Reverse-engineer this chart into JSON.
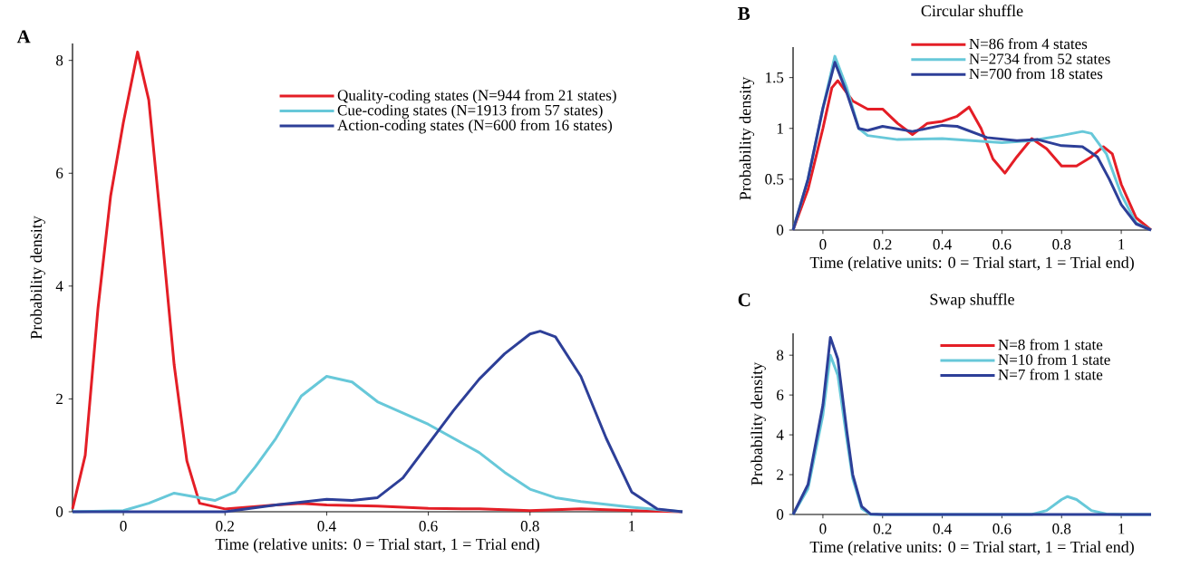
{
  "chart_data": [
    {
      "type": "line",
      "annotations": [
        "A"
      ],
      "xlabel": "Time (relative units: 0 = Trial start, 1 = Trial end)",
      "ylabel": "Probability density",
      "xlim": [
        -0.1,
        1.1
      ],
      "xticks": [
        0,
        0.2,
        0.4,
        0.6,
        0.8,
        1
      ],
      "ylim": [
        0,
        8.3
      ],
      "yticks": [
        0,
        2,
        4,
        6,
        8
      ],
      "legend": "top right",
      "series": [
        {
          "name": "Quality-coding states (N=944 from 21 states)",
          "color": "#e41e26",
          "x": [
            -0.1,
            -0.075,
            -0.05,
            -0.025,
            0,
            0.028,
            0.05,
            0.075,
            0.1,
            0.125,
            0.15,
            0.2,
            0.3,
            0.35,
            0.4,
            0.5,
            0.6,
            0.7,
            0.8,
            0.9,
            1.0,
            1.1
          ],
          "values": [
            0.05,
            1.0,
            3.6,
            5.6,
            6.9,
            8.15,
            7.3,
            5.0,
            2.6,
            0.9,
            0.15,
            0.05,
            0.12,
            0.15,
            0.12,
            0.1,
            0.06,
            0.05,
            0.02,
            0.05,
            0.02,
            0
          ]
        },
        {
          "name": "Cue-coding states (N=1913 from 57 states)",
          "color": "#67c8d9",
          "x": [
            -0.1,
            0,
            0.05,
            0.1,
            0.15,
            0.18,
            0.22,
            0.26,
            0.3,
            0.35,
            0.4,
            0.45,
            0.5,
            0.6,
            0.7,
            0.75,
            0.8,
            0.85,
            0.9,
            1.0,
            1.1
          ],
          "values": [
            0,
            0.02,
            0.15,
            0.33,
            0.25,
            0.2,
            0.35,
            0.8,
            1.3,
            2.05,
            2.4,
            2.3,
            1.95,
            1.55,
            1.05,
            0.7,
            0.4,
            0.25,
            0.18,
            0.08,
            0
          ]
        },
        {
          "name": "Action-coding states (N=600 from 16 states)",
          "color": "#2d3f98",
          "x": [
            -0.1,
            0.2,
            0.3,
            0.4,
            0.45,
            0.5,
            0.55,
            0.6,
            0.65,
            0.7,
            0.75,
            0.8,
            0.82,
            0.85,
            0.9,
            0.95,
            1.0,
            1.05,
            1.1
          ],
          "values": [
            0,
            0,
            0.12,
            0.22,
            0.2,
            0.25,
            0.6,
            1.2,
            1.8,
            2.35,
            2.8,
            3.15,
            3.2,
            3.1,
            2.4,
            1.3,
            0.35,
            0.05,
            0
          ]
        }
      ]
    },
    {
      "type": "line",
      "annotations": [
        "B"
      ],
      "title": "Circular shuffle",
      "xlabel": "Time (relative units: 0 = Trial start, 1 = Trial end)",
      "ylabel": "Probability density",
      "xlim": [
        -0.1,
        1.1
      ],
      "xticks": [
        0,
        0.2,
        0.4,
        0.6,
        0.8,
        1
      ],
      "ylim": [
        0,
        1.8
      ],
      "yticks": [
        0,
        0.5,
        1,
        1.5
      ],
      "legend": "top right",
      "series": [
        {
          "name": "N=86 from 4 states",
          "color": "#e41e26",
          "x": [
            -0.1,
            -0.05,
            0,
            0.03,
            0.05,
            0.1,
            0.15,
            0.2,
            0.25,
            0.3,
            0.35,
            0.4,
            0.45,
            0.49,
            0.53,
            0.57,
            0.61,
            0.65,
            0.7,
            0.75,
            0.8,
            0.85,
            0.9,
            0.94,
            0.97,
            1.0,
            1.05,
            1.1
          ],
          "values": [
            0,
            0.4,
            1.0,
            1.4,
            1.47,
            1.27,
            1.19,
            1.19,
            1.05,
            0.94,
            1.05,
            1.07,
            1.12,
            1.21,
            1.0,
            0.7,
            0.56,
            0.72,
            0.9,
            0.8,
            0.63,
            0.63,
            0.72,
            0.82,
            0.75,
            0.45,
            0.12,
            0
          ]
        },
        {
          "name": "N=2734 from 52 states",
          "color": "#67c8d9",
          "x": [
            -0.1,
            -0.05,
            0,
            0.04,
            0.08,
            0.12,
            0.15,
            0.25,
            0.4,
            0.5,
            0.6,
            0.7,
            0.8,
            0.87,
            0.9,
            0.95,
            1.0,
            1.05,
            1.1
          ],
          "values": [
            0,
            0.5,
            1.2,
            1.71,
            1.4,
            1.0,
            0.93,
            0.89,
            0.9,
            0.88,
            0.86,
            0.88,
            0.93,
            0.97,
            0.95,
            0.75,
            0.35,
            0.07,
            0
          ]
        },
        {
          "name": "N=700 from 18 states",
          "color": "#2d3f98",
          "x": [
            -0.1,
            -0.05,
            0,
            0.04,
            0.08,
            0.12,
            0.15,
            0.2,
            0.3,
            0.4,
            0.45,
            0.55,
            0.65,
            0.72,
            0.8,
            0.87,
            0.92,
            0.96,
            1.0,
            1.05,
            1.1
          ],
          "values": [
            0,
            0.5,
            1.2,
            1.65,
            1.35,
            1.0,
            0.98,
            1.02,
            0.97,
            1.03,
            1.02,
            0.91,
            0.88,
            0.89,
            0.83,
            0.82,
            0.72,
            0.5,
            0.25,
            0.06,
            0
          ]
        }
      ]
    },
    {
      "type": "line",
      "annotations": [
        "C"
      ],
      "title": "Swap shuffle",
      "xlabel": "Time (relative units: 0 = Trial start, 1 = Trial end)",
      "ylabel": "Probability density",
      "xlim": [
        -0.1,
        1.1
      ],
      "xticks": [
        0,
        0.2,
        0.4,
        0.6,
        0.8,
        1
      ],
      "ylim": [
        0,
        9.1
      ],
      "yticks": [
        0,
        2,
        4,
        6,
        8
      ],
      "legend": "top right",
      "series": [
        {
          "name": "N=8 from 1 state",
          "color": "#e41e26"
        },
        {
          "name": "N=10 from 1 state",
          "color": "#67c8d9",
          "x": [
            -0.1,
            -0.05,
            0,
            0.025,
            0.05,
            0.08,
            0.1,
            0.13,
            0.16,
            0.7,
            0.75,
            0.8,
            0.82,
            0.85,
            0.9,
            0.95,
            1.0,
            1.1
          ],
          "values": [
            0,
            1.3,
            5.0,
            8.0,
            7.0,
            3.8,
            1.8,
            0.3,
            0,
            0,
            0.2,
            0.75,
            0.9,
            0.75,
            0.2,
            0.02,
            0,
            0
          ]
        },
        {
          "name": "N=7 from 1 state",
          "color": "#2d3f98",
          "x": [
            -0.1,
            -0.05,
            0,
            0.025,
            0.05,
            0.08,
            0.1,
            0.13,
            0.16,
            0.2,
            1.1
          ],
          "values": [
            0,
            1.5,
            5.5,
            8.9,
            7.8,
            4.2,
            2.0,
            0.4,
            0.02,
            0,
            0
          ]
        }
      ]
    }
  ]
}
